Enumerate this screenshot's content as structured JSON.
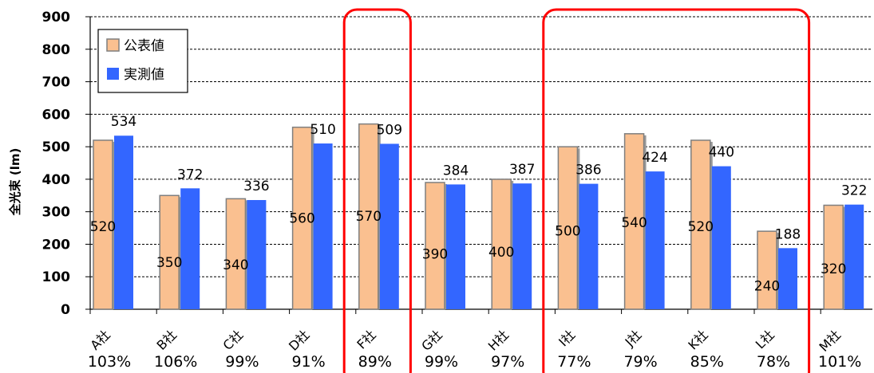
{
  "chart_data": {
    "type": "bar",
    "ylabel": "全光束 (lm)",
    "ylim": [
      0,
      900
    ],
    "yticks": [
      0,
      100,
      200,
      300,
      400,
      500,
      600,
      700,
      800,
      900
    ],
    "grid": true,
    "legend_position": "top-left",
    "categories": [
      "A社",
      "B社",
      "C社",
      "D社",
      "F社",
      "G社",
      "H社",
      "I社",
      "J社",
      "K社",
      "L社",
      "M社"
    ],
    "ratios": [
      "103%",
      "106%",
      "99%",
      "91%",
      "89%",
      "99%",
      "97%",
      "77%",
      "79%",
      "85%",
      "78%",
      "101%"
    ],
    "series": [
      {
        "name": "公表値",
        "color": "#FAC090",
        "values": [
          520,
          350,
          340,
          560,
          570,
          390,
          400,
          500,
          540,
          520,
          240,
          320
        ]
      },
      {
        "name": "実測値",
        "color": "#3366FF",
        "values": [
          534,
          372,
          336,
          510,
          509,
          384,
          387,
          386,
          424,
          440,
          188,
          322
        ]
      }
    ],
    "highlight_groups": [
      [
        4
      ],
      [
        7,
        8,
        9,
        10
      ]
    ],
    "highlight_color": "#FF0000"
  }
}
